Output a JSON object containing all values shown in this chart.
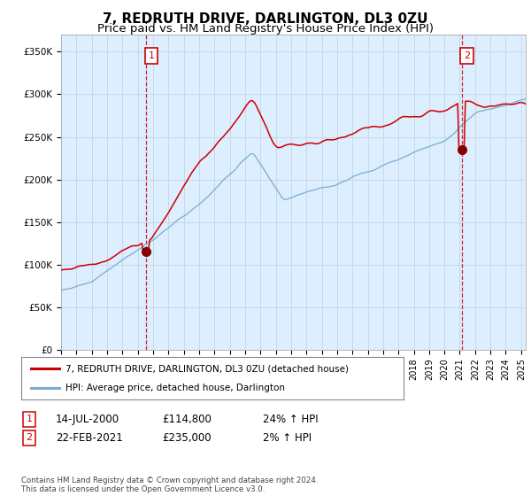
{
  "title": "7, REDRUTH DRIVE, DARLINGTON, DL3 0ZU",
  "subtitle": "Price paid vs. HM Land Registry's House Price Index (HPI)",
  "ylabel_ticks": [
    "£0",
    "£50K",
    "£100K",
    "£150K",
    "£200K",
    "£250K",
    "£300K",
    "£350K"
  ],
  "ytick_values": [
    0,
    50000,
    100000,
    150000,
    200000,
    250000,
    300000,
    350000
  ],
  "ylim": [
    0,
    370000
  ],
  "xlim_start": 1995.0,
  "xlim_end": 2025.3,
  "red_line_color": "#cc0000",
  "blue_line_color": "#7aadce",
  "vline_color": "#cc0000",
  "chart_bg_color": "#ddeeff",
  "marker1_x": 2000.54,
  "marker1_y": 114800,
  "marker2_x": 2021.13,
  "marker2_y": 235000,
  "marker_color": "#880000",
  "legend_label_red": "7, REDRUTH DRIVE, DARLINGTON, DL3 0ZU (detached house)",
  "legend_label_blue": "HPI: Average price, detached house, Darlington",
  "table_row1": [
    "1",
    "14-JUL-2000",
    "£114,800",
    "24% ↑ HPI"
  ],
  "table_row2": [
    "2",
    "22-FEB-2021",
    "£235,000",
    "2% ↑ HPI"
  ],
  "footer_text": "Contains HM Land Registry data © Crown copyright and database right 2024.\nThis data is licensed under the Open Government Licence v3.0.",
  "background_color": "#ffffff",
  "grid_color": "#c8d8e8",
  "title_fontsize": 11,
  "subtitle_fontsize": 9.5,
  "tick_fontsize": 7.5
}
